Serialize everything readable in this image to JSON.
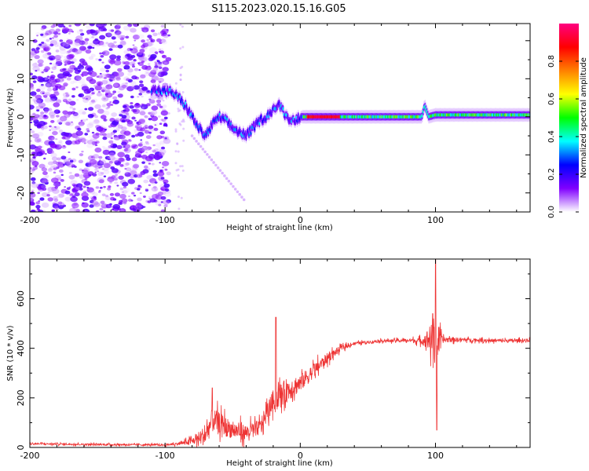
{
  "figure": {
    "title": "S115.2023.020.15.16.G05"
  },
  "chart_data": [
    {
      "type": "heatmap",
      "title": "",
      "xlabel": "Height of straight line (km)",
      "ylabel": "Frequency (Hz)",
      "xlim": [
        -200,
        170
      ],
      "ylim": [
        -25,
        24.5
      ],
      "xticks": [
        -200,
        -100,
        0,
        100
      ],
      "xtick_labels": [
        "-200",
        "-100",
        "0",
        "100"
      ],
      "yticks": [
        -20,
        -10,
        0,
        10,
        20
      ],
      "ytick_labels": [
        "-20",
        "-10",
        "0",
        "10",
        "20"
      ],
      "grid": false,
      "colorbar": {
        "label": "Normalized spectral amplitude",
        "range": [
          0,
          1
        ],
        "ticks": [
          0.0,
          0.2,
          0.4,
          0.6,
          0.8
        ],
        "tick_labels": [
          "0.0",
          "0.2",
          "0.4",
          "0.6",
          "0.8"
        ],
        "colormap": [
          "#ffffff",
          "#8000ff",
          "#0000ff",
          "#00ffff",
          "#00ff00",
          "#ffff00",
          "#ff8000",
          "#ff0000",
          "#ff0080"
        ]
      },
      "ridge": {
        "x": [
          -110,
          -95,
          -90,
          -85,
          -80,
          -75,
          -70,
          -65,
          -60,
          -55,
          -50,
          -45,
          -40,
          -35,
          -30,
          -25,
          -20,
          -15,
          -10,
          -5,
          0,
          20,
          50,
          80,
          90,
          92,
          95,
          100,
          130,
          170
        ],
        "y": [
          7,
          6.5,
          5,
          3,
          0,
          -3,
          -5,
          -2,
          0,
          -1,
          -3,
          -4,
          -5,
          -3,
          -1,
          0,
          2,
          3,
          0,
          -1,
          0,
          0,
          0,
          0,
          0,
          3,
          0,
          0.5,
          0.5,
          0.5
        ]
      }
    },
    {
      "type": "line",
      "title": "",
      "xlabel": "Height of straight line (km)",
      "ylabel": "SNR (10 * v/v)",
      "xlim": [
        -200,
        170
      ],
      "ylim": [
        0,
        760
      ],
      "xticks": [
        -200,
        -100,
        0,
        100
      ],
      "xtick_labels": [
        "-200",
        "-100",
        "0",
        "100"
      ],
      "yticks": [
        0,
        200,
        400,
        600
      ],
      "ytick_labels": [
        "0",
        "200",
        "400",
        "600"
      ],
      "grid": false,
      "color": "#ee3333",
      "envelope": {
        "x": [
          -200,
          -150,
          -100,
          -90,
          -80,
          -70,
          -65,
          -60,
          -50,
          -40,
          -30,
          -20,
          -10,
          0,
          10,
          20,
          30,
          40,
          60,
          80,
          90,
          95,
          100,
          105,
          120,
          150,
          170
        ],
        "mean": [
          15,
          12,
          10,
          15,
          25,
          50,
          110,
          100,
          70,
          60,
          80,
          190,
          230,
          260,
          310,
          360,
          400,
          420,
          430,
          432,
          430,
          440,
          420,
          435,
          435,
          430,
          432
        ],
        "amplitude": [
          5,
          5,
          5,
          8,
          20,
          60,
          70,
          60,
          50,
          45,
          45,
          60,
          70,
          50,
          40,
          30,
          15,
          8,
          8,
          10,
          20,
          60,
          150,
          20,
          10,
          10,
          10
        ]
      },
      "spikes": [
        {
          "x": -65,
          "y": 240
        },
        {
          "x": -18,
          "y": 525
        },
        {
          "x": 98,
          "y": 540
        },
        {
          "x": 100,
          "y": 760
        },
        {
          "x": 101,
          "y": 70
        }
      ]
    }
  ]
}
